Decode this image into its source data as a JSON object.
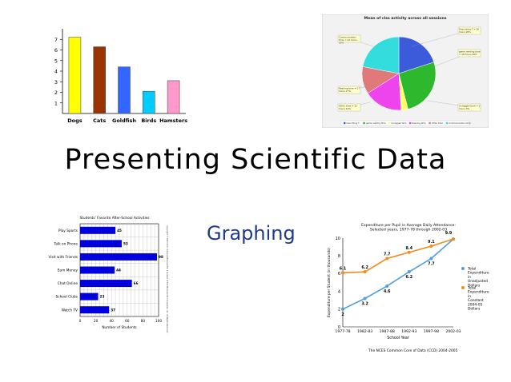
{
  "heading": {
    "title": "Presenting Scientific Data",
    "subtitle": "Graphing"
  },
  "chart_data": [
    {
      "type": "bar",
      "categories": [
        "Dogs",
        "Cats",
        "Goldfish",
        "Birds",
        "Hamsters"
      ],
      "values": [
        7.2,
        6.3,
        4.4,
        2.1,
        3.1
      ],
      "colors": [
        "#ffff00",
        "#993300",
        "#3366ff",
        "#00ccff",
        "#ff99cc"
      ],
      "ylim": [
        0,
        8
      ],
      "yticks": [
        1,
        2,
        3,
        4,
        5,
        6,
        7
      ],
      "title": "",
      "xlabel": "",
      "ylabel": "",
      "grid": false
    },
    {
      "type": "pie",
      "title": "Mean of clss activity across all sessions",
      "labels": [
        "Describing T",
        "game reading time",
        "Unlogged time",
        "Reading time",
        "Other time",
        "Communication time"
      ],
      "values": [
        20,
        26,
        3,
        17,
        12,
        22
      ],
      "colors": [
        "#3b5bdb",
        "#2db82d",
        "#ffff66",
        "#ee44ee",
        "#e07a7a",
        "#33dddd"
      ],
      "callouts": [
        "Describing T = 20 hours 20%",
        "game reading time = 26 hours 26%",
        "Reading time = 17 hours 17%",
        "Other time = 12 hours 12%",
        "Unlogged time = 3 hours 3%",
        "Communication time = 22 hours 22%"
      ],
      "legend": [
        "Describing T",
        "game reading time",
        "Unlogged time",
        "Reading time",
        "Other time",
        "Communication time"
      ],
      "legend_position": "bottom"
    },
    {
      "type": "bar",
      "orientation": "horizontal",
      "title": "Students' Favorite After-School Activities",
      "categories": [
        "Play Sports",
        "Talk on Phone",
        "Visit with Friends",
        "Earn Money",
        "Chat Online",
        "School Clubs",
        "Watch TV"
      ],
      "values": [
        45,
        53,
        98,
        44,
        66,
        23,
        37
      ],
      "color": "#0000dd",
      "xlim": [
        0,
        100
      ],
      "xticks": [
        0,
        20,
        40,
        60,
        80,
        100
      ],
      "xlabel": "Number of Students",
      "grid": true,
      "side_note": "Copyright © 2007-2011 Glencoe/McGraw-Hill, a division of The McGraw-Hill Companies, Inc. All Rights Reserved."
    },
    {
      "type": "line",
      "title": "Expenditure per Pupil in Average Daily Attendance: Selected years, 1977-78 through 2002-03",
      "categories": [
        "1977-78",
        "1982-83",
        "1987-88",
        "1992-93",
        "1997-98",
        "2002-03"
      ],
      "series": [
        {
          "name": "Total Expenditure in Unadjusted Dollars",
          "values": [
            2.0,
            3.2,
            4.6,
            6.2,
            7.7,
            9.9
          ],
          "color": "#4f9fe0"
        },
        {
          "name": "Total Expenditure in Constant 2004-05 Dollars",
          "values": [
            6.1,
            6.2,
            7.7,
            8.4,
            9.1,
            9.9
          ],
          "color": "#f08c1c"
        }
      ],
      "value_labels": [
        [
          "2",
          "3.2",
          "4.6",
          "6.2",
          "7.7",
          "9.9"
        ],
        [
          "6.1",
          "6.2",
          "7.7",
          "8.4",
          "9.1",
          ""
        ]
      ],
      "ylim": [
        0,
        10
      ],
      "yticks": [
        0,
        2,
        4,
        6,
        8,
        10
      ],
      "ylabel": "Expenditure per Student (in thousands)",
      "xlabel": "School Year",
      "legend_position": "right",
      "source": "The NCES Common Core of Data (CCD) 2004-2005"
    }
  ]
}
